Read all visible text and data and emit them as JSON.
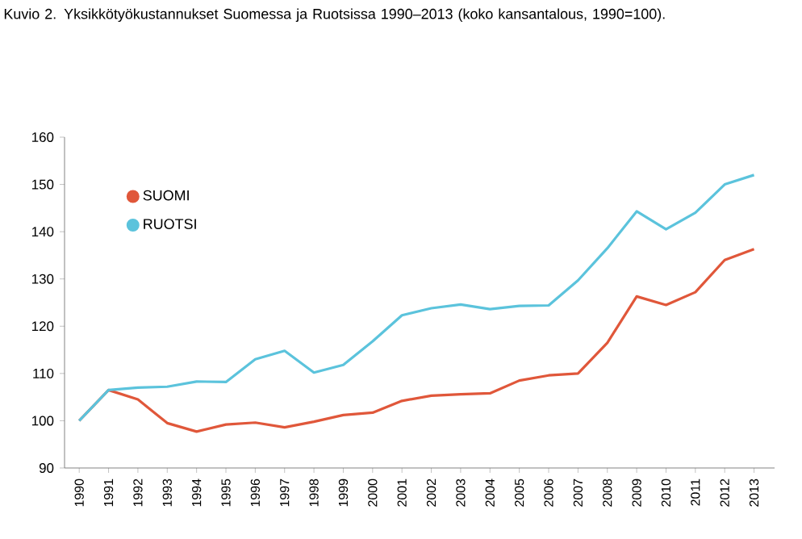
{
  "chart_data": {
    "type": "line",
    "title": "Kuvio 2. Yksikkötyökustannukset Suomessa ja Ruotsissa 1990–2013 (koko kansantalous, 1990=100).",
    "categories": [
      "1990",
      "1991",
      "1992",
      "1993",
      "1994",
      "1995",
      "1996",
      "1997",
      "1998",
      "1999",
      "2000",
      "2001",
      "2002",
      "2003",
      "2004",
      "2005",
      "2006",
      "2007",
      "2008",
      "2009",
      "2010",
      "2011",
      "2012",
      "2013"
    ],
    "series": [
      {
        "name": "SUOMI",
        "color": "#e0573a",
        "values": [
          100,
          106.5,
          104.5,
          99.5,
          97.7,
          99.2,
          99.6,
          98.6,
          99.8,
          101.2,
          101.7,
          104.2,
          105.3,
          105.6,
          105.8,
          108.5,
          109.6,
          110,
          116.5,
          126.3,
          124.5,
          127.2,
          134,
          136.3
        ]
      },
      {
        "name": "RUOTSI",
        "color": "#5bc3dc",
        "values": [
          100,
          106.5,
          107,
          107.2,
          108.3,
          108.2,
          113,
          114.8,
          110.2,
          111.8,
          116.8,
          122.3,
          123.8,
          124.6,
          123.6,
          124.3,
          124.4,
          129.7,
          136.5,
          144.3,
          140.5,
          144,
          150,
          152
        ]
      }
    ],
    "ylim": [
      90,
      160
    ],
    "yticks": [
      90,
      100,
      110,
      120,
      130,
      140,
      150,
      160
    ],
    "legend": "top left",
    "grid": false,
    "line_style": "solid"
  }
}
